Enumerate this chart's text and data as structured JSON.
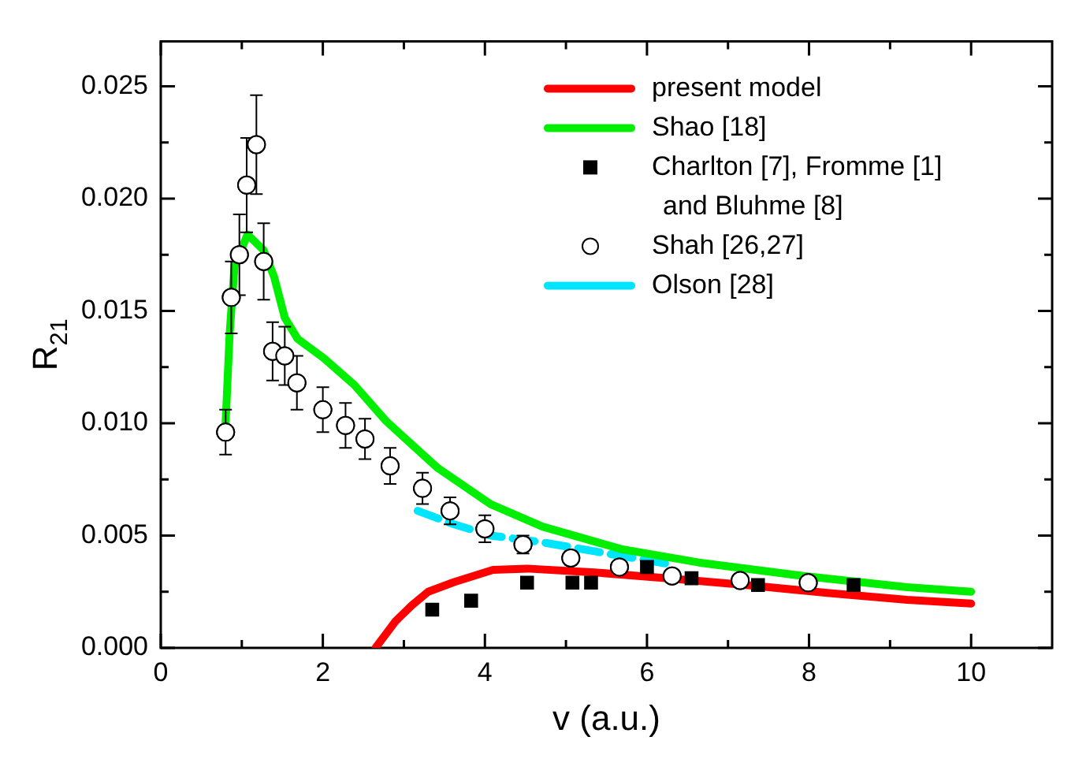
{
  "chart_data": {
    "type": "line",
    "xlabel": "v (a.u.)",
    "ylabel": "R$_{21}$",
    "xlim": [
      0,
      11
    ],
    "xticks": [
      0,
      {
        "value": 1,
        "label": null
      },
      2,
      {
        "value": 3,
        "label": null
      },
      4,
      {
        "value": 5,
        "label": null
      },
      6,
      {
        "value": 7,
        "label": null
      },
      8,
      {
        "value": 9,
        "label": null
      },
      10
    ],
    "ylim": [
      0,
      0.027
    ],
    "yticks": [
      {
        "value": 0,
        "label": "0.000"
      },
      {
        "value": 0.0025,
        "label": null
      },
      {
        "value": 0.005,
        "label": "0.005"
      },
      {
        "value": 0.0075,
        "label": null
      },
      {
        "value": 0.01,
        "label": "0.010"
      },
      {
        "value": 0.0125,
        "label": null
      },
      {
        "value": 0.015,
        "label": "0.015"
      },
      {
        "value": 0.0175,
        "label": null
      },
      {
        "value": 0.02,
        "label": "0.020"
      },
      {
        "value": 0.0225,
        "label": null
      },
      {
        "value": 0.025,
        "label": "0.025"
      }
    ],
    "grid": false,
    "legend": "top right",
    "series": [
      {
        "name": "present model",
        "type": "line",
        "color": "#ff0000",
        "line_style": "solid",
        "marker": "none",
        "x": [
          2.65,
          2.9,
          3.1,
          3.3,
          3.62,
          4.1,
          4.52,
          5.35,
          6.32,
          7.28,
          8.25,
          9.21,
          10
        ],
        "values": [
          0,
          0.0012,
          0.0019,
          0.0025,
          0.00293,
          0.00347,
          0.00353,
          0.00336,
          0.00308,
          0.00278,
          0.00244,
          0.00214,
          0.00197
        ]
      },
      {
        "name": "Shao [18]",
        "type": "line",
        "color": "#00ee00",
        "line_style": "solid",
        "marker": "none",
        "x": [
          0.8,
          0.85,
          0.91,
          1.07,
          1.27,
          1.4,
          1.53,
          1.69,
          2.01,
          2.39,
          2.78,
          3.42,
          4.07,
          4.71,
          5.68,
          6.64,
          7.93,
          9.21,
          10
        ],
        "values": [
          0.01,
          0.014,
          0.017,
          0.0184,
          0.0177,
          0.0165,
          0.0147,
          0.01375,
          0.0129,
          0.0117,
          0.0101,
          0.008,
          0.0064,
          0.0054,
          0.0044,
          0.0038,
          0.0032,
          0.0027,
          0.0025
        ]
      },
      {
        "name": "Charlton [7], Fromme [1] and Bluhme [8]",
        "type": "scatter",
        "color": "#000000",
        "marker": "square",
        "x": [
          3.35,
          3.83,
          4.52,
          5.08,
          5.31,
          6.0,
          6.55,
          7.37,
          8.55
        ],
        "values": [
          0.0017,
          0.0021,
          0.0029,
          0.0029,
          0.0029,
          0.0036,
          0.0031,
          0.0028,
          0.0028
        ]
      },
      {
        "name": "Shah [26,27]",
        "type": "scatter",
        "color": "#000000",
        "marker": "circle",
        "x": [
          0.8,
          0.87,
          0.97,
          1.06,
          1.18,
          1.27,
          1.38,
          1.53,
          1.68,
          2.0,
          2.28,
          2.52,
          2.83,
          3.23,
          3.57,
          4.0,
          4.47,
          5.06,
          5.66,
          6.31,
          7.15,
          7.99
        ],
        "values": [
          0.0096,
          0.0156,
          0.0175,
          0.0206,
          0.0224,
          0.0172,
          0.0132,
          0.013,
          0.0118,
          0.0106,
          0.0099,
          0.0093,
          0.0081,
          0.0071,
          0.0061,
          0.0053,
          0.0046,
          0.004,
          0.0036,
          0.0032,
          0.003,
          0.0029
        ],
        "errors": [
          0.001,
          0.0016,
          0.0018,
          0.0021,
          0.0022,
          0.0017,
          0.0013,
          0.0013,
          0.0012,
          0.001,
          0.001,
          0.0009,
          0.0008,
          0.0007,
          0.0006,
          0.0006,
          0.0004,
          0.0003,
          null,
          null,
          null,
          null
        ]
      },
      {
        "name": "Olson [28]",
        "type": "line",
        "color": "#00e5ff",
        "line_style": "dashed",
        "marker": "none",
        "x": [
          3.17,
          3.62,
          4.07,
          4.71,
          5.35,
          6.32
        ],
        "values": [
          0.0061,
          0.0055,
          0.005,
          0.0047,
          0.0043,
          0.0037
        ]
      }
    ]
  }
}
